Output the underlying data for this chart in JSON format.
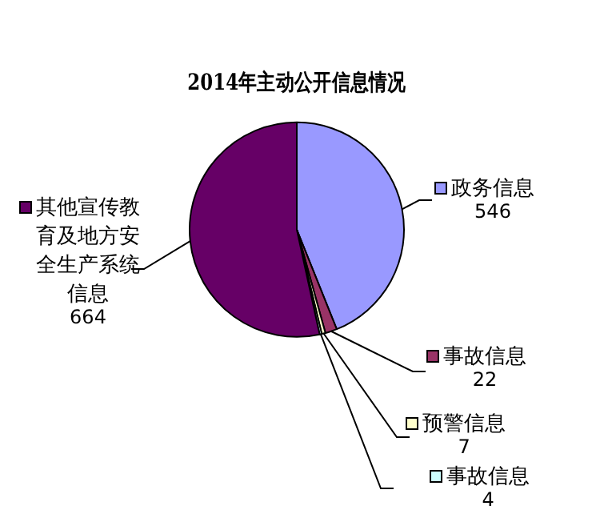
{
  "chart_data": {
    "type": "pie",
    "title": "2014年主动公开信息情况",
    "categories": [
      "政务信息",
      "事故信息",
      "预警信息",
      "事故信息",
      "其他宣传教育及地方安全生产系统信息"
    ],
    "values": [
      546,
      22,
      7,
      4,
      664
    ],
    "colors": [
      "#9999ff",
      "#993366",
      "#ffffcc",
      "#ccffff",
      "#660066"
    ],
    "data_labels": true,
    "legend": "bottom left"
  }
}
